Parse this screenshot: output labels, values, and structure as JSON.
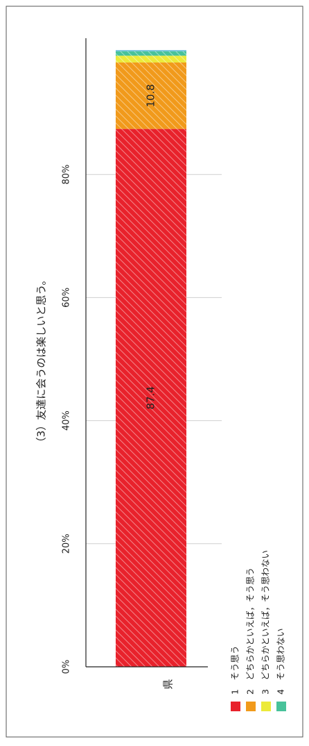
{
  "chart_data": {
    "type": "bar",
    "orientation": "stacked-100-percent",
    "title": "（3）友達に会うのは楽しいと思う。",
    "categories": [
      "県"
    ],
    "series": [
      {
        "name": "1　そう思う",
        "values": [
          87.4
        ],
        "label": "87.4",
        "color": "#e8222c"
      },
      {
        "name": "2　どちらかといえば，そう思う",
        "values": [
          10.8
        ],
        "label": "10.8",
        "color": "#f19a1b"
      },
      {
        "name": "3　どちらかといえば，そう思わない",
        "values": [
          1.1
        ],
        "label": "",
        "color": "#ecea3a"
      },
      {
        "name": "4　そう思わない",
        "values": [
          0.7
        ],
        "label": "",
        "color": "#48c29a"
      }
    ],
    "axis": {
      "min": 0,
      "max": 100,
      "ticks": [
        0,
        20,
        40,
        60,
        80
      ],
      "tick_labels": [
        "0%",
        "20%",
        "40%",
        "60%",
        "80%"
      ]
    },
    "grid": true,
    "legend_position": "bottom"
  }
}
